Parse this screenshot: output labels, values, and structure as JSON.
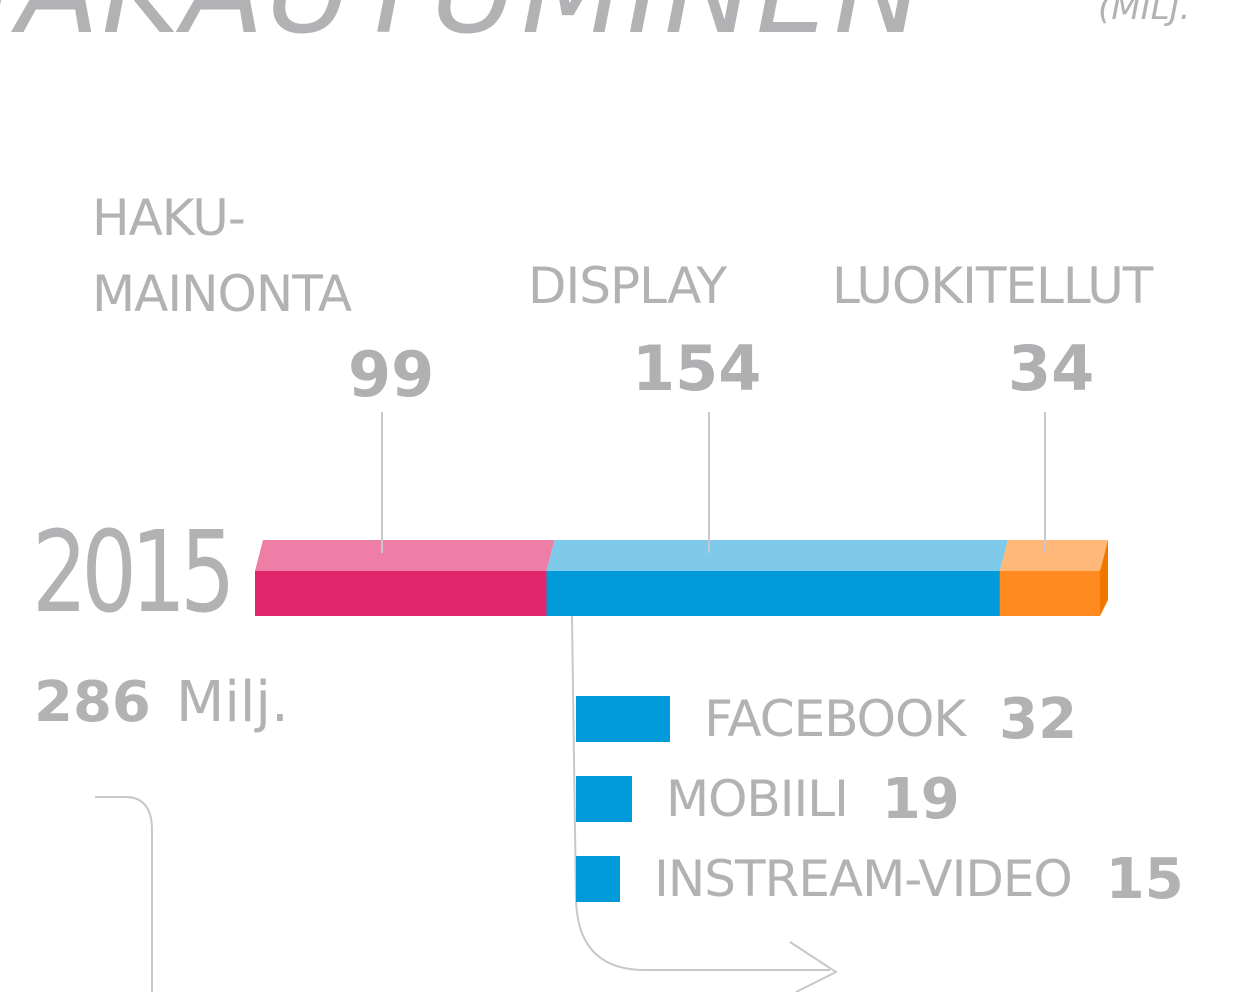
{
  "chart_data": {
    "type": "bar",
    "title": "JAKAUTUMINEN",
    "title_unit": "(MILJ.",
    "year": "2015",
    "total": 286,
    "total_unit": "Milj.",
    "series": [
      {
        "name": "HAKU-MAINONTA",
        "color": "#e2266b",
        "top_color": "#ee7ea6",
        "values": [
          99
        ]
      },
      {
        "name": "DISPLAY",
        "color": "#0099d9",
        "top_color": "#7fcaeb",
        "values": [
          154
        ]
      },
      {
        "name": "LUOKITELLUT",
        "color": "#ff8a1f",
        "top_color": "#ffb877",
        "values": [
          34
        ]
      }
    ],
    "breakdown": {
      "categories": [
        "FACEBOOK",
        "MOBIILI",
        "INSTREAM-VIDEO"
      ],
      "values": [
        32,
        19,
        15
      ],
      "color": "#0099d9"
    }
  }
}
